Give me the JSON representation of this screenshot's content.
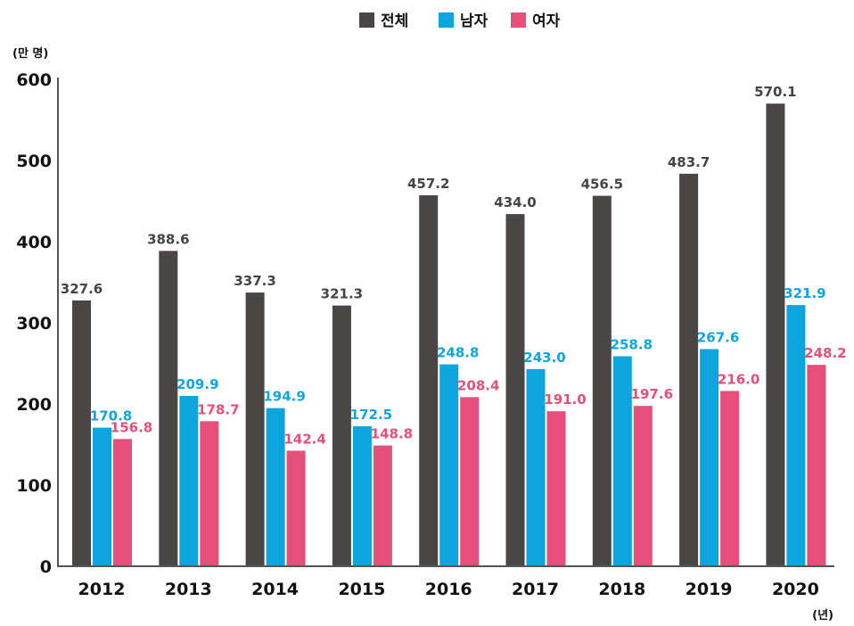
{
  "chart_data": {
    "type": "bar",
    "categories": [
      "2012",
      "2013",
      "2014",
      "2015",
      "2016",
      "2017",
      "2018",
      "2019",
      "2020"
    ],
    "series": [
      {
        "name": "전체",
        "color": "#4a4646",
        "values": [
          327.6,
          388.6,
          337.3,
          321.3,
          457.2,
          434.0,
          456.5,
          483.7,
          570.1
        ]
      },
      {
        "name": "남자",
        "color": "#0ea5dc",
        "values": [
          170.8,
          209.9,
          194.9,
          172.5,
          248.8,
          243.0,
          258.8,
          267.6,
          321.9
        ]
      },
      {
        "name": "여자",
        "color": "#e5507a",
        "values": [
          156.8,
          178.7,
          142.4,
          148.8,
          208.4,
          191.0,
          197.6,
          216.0,
          248.2
        ]
      }
    ],
    "y_unit": "(만 명)",
    "x_unit": "(년)",
    "yticks": [
      0,
      100,
      200,
      300,
      400,
      500,
      600
    ],
    "ylim": [
      0,
      600
    ],
    "grid": false,
    "legend_position": "top-center",
    "data_labels": true
  }
}
